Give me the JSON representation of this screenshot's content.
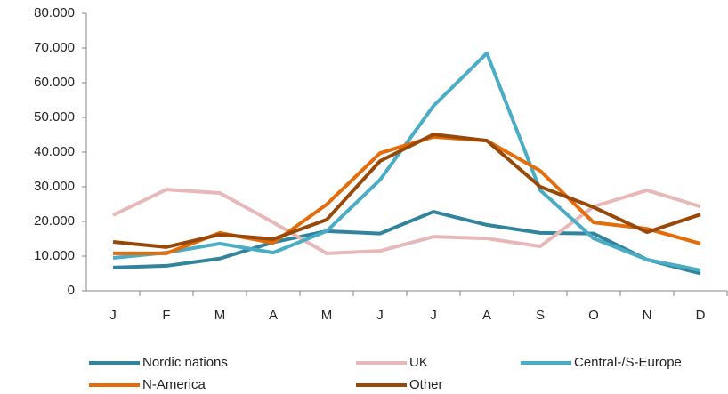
{
  "chart_data": {
    "type": "line",
    "categories": [
      "J",
      "F",
      "M",
      "A",
      "M",
      "J",
      "J",
      "A",
      "S",
      "O",
      "N",
      "D"
    ],
    "series": [
      {
        "name": "Nordic nations",
        "color": "#31849b",
        "values": [
          6700,
          7200,
          9300,
          14000,
          17200,
          16500,
          22800,
          19000,
          16700,
          16500,
          9000,
          5000
        ]
      },
      {
        "name": "UK",
        "color": "#e6b9b8",
        "values": [
          21800,
          29200,
          28200,
          19700,
          10800,
          11500,
          15600,
          15100,
          12800,
          24300,
          29000,
          24300
        ]
      },
      {
        "name": "Central-/S-Europe",
        "color": "#4bacc6",
        "values": [
          9500,
          11000,
          13600,
          11000,
          17200,
          32000,
          53300,
          68500,
          29000,
          15100,
          9000,
          5900
        ]
      },
      {
        "name": "N-America",
        "color": "#e46c0a",
        "values": [
          10800,
          10800,
          16700,
          13800,
          24900,
          39700,
          44400,
          43300,
          34600,
          19700,
          17900,
          13600
        ]
      },
      {
        "name": "Other",
        "color": "#984807",
        "values": [
          14100,
          12600,
          16200,
          14900,
          20500,
          37400,
          45100,
          43300,
          30000,
          24100,
          16900,
          22000
        ]
      }
    ],
    "ylim": [
      0,
      80000
    ],
    "yticks": [
      0,
      {
        "value": 10000,
        "label": "10.000"
      },
      {
        "value": 20000,
        "label": "20.000"
      },
      {
        "value": 30000,
        "label": "30.000"
      },
      {
        "value": 40000,
        "label": "40.000"
      },
      {
        "value": 50000,
        "label": "50.000"
      },
      {
        "value": 60000,
        "label": "60.000"
      },
      {
        "value": 70000,
        "label": "70.000"
      },
      {
        "value": 80000,
        "label": "80.000"
      }
    ],
    "grid": false,
    "legend": "bottom"
  }
}
